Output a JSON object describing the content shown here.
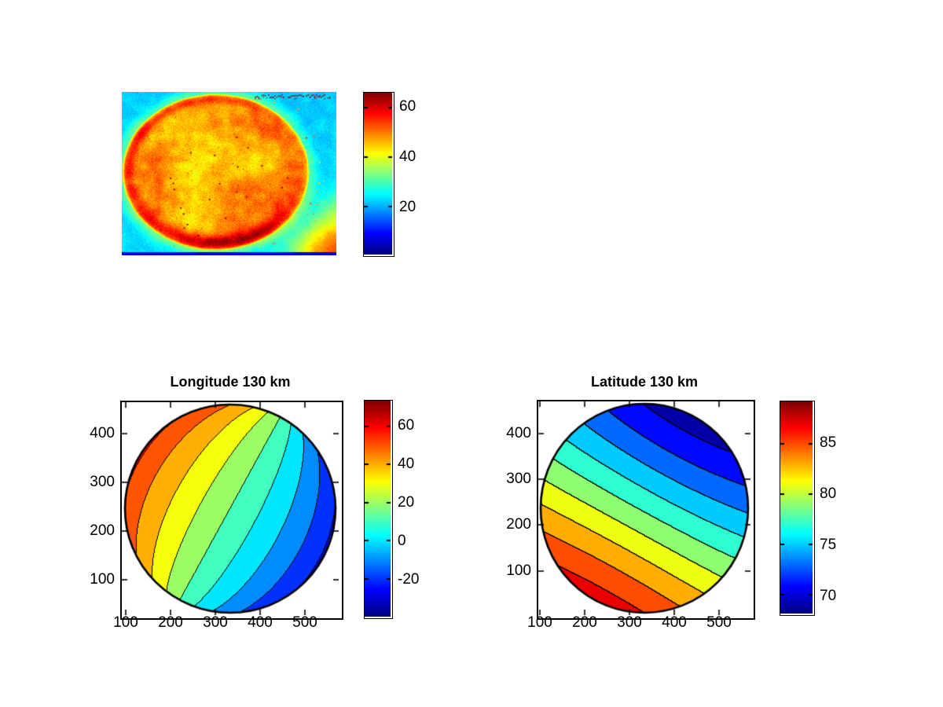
{
  "figure": {
    "kind": "matlab-like scientific figure",
    "background": "#ffffff",
    "colormap": "jet",
    "jet_endpoints": {
      "low": "#000080",
      "high": "#800000"
    }
  },
  "chart_data": [
    {
      "id": "planet-disk-image",
      "type": "heatmap",
      "title": "",
      "colormap": "jet",
      "caxis": [
        1,
        66
      ],
      "colorbar_ticks": [
        60,
        40,
        20
      ],
      "background_level": 22.5,
      "disk_level": 46.5,
      "halo_level": 31,
      "bottom_line_level": 8,
      "disk_center_frac": [
        0.436,
        0.488
      ],
      "disk_radius_frac": [
        0.436,
        0.478
      ],
      "stamp": "illegible dark-red pixel timestamp at top-right",
      "features": [
        "dark-red limb ring strongest on upper-left arc",
        "dark-red crescent at bottom of disk",
        "dark-red shading inside right limb",
        "red-orange blob entering bottom-right corner",
        "yellow-green halo around disk",
        "dark-blue horizontal line along bottom edge",
        "random bright and dark speckles (cosmic-ray hits)"
      ]
    },
    {
      "id": "longitude-contour",
      "type": "contour",
      "title": "Longitude 130 km",
      "x_ticks": [
        100,
        200,
        300,
        400,
        500
      ],
      "y_ticks": [
        100,
        200,
        300,
        400
      ],
      "contour_levels_min": -35,
      "contour_level_step": 10,
      "n_bands": 10,
      "caxis": [
        -39.6,
        73.5
      ],
      "colorbar_ticks": [
        60,
        40,
        20,
        0,
        -20
      ],
      "value_at_disk_center": 15,
      "value_model": {
        "kind": "azimuth-about-pole",
        "offset_deg": 15,
        "scale": -0.65
      },
      "legend_position": "right-colorbar",
      "grid": false
    },
    {
      "id": "latitude-contour",
      "type": "contour",
      "title": "Latitude 130 km",
      "x_ticks": [
        100,
        200,
        300,
        400,
        500
      ],
      "y_ticks": [
        100,
        200,
        300,
        400
      ],
      "contour_levels_min": 68,
      "contour_level_step": 2,
      "n_bands": 10,
      "caxis": [
        68.2,
        89.2
      ],
      "colorbar_ticks": [
        85,
        80,
        75,
        70
      ],
      "value_at_disk_center": 77.7,
      "value_model": {
        "kind": "angular-distance-from-pole",
        "offset_deg": 78.2,
        "scale": 10.2
      },
      "legend_position": "right-colorbar",
      "grid": false
    }
  ],
  "projection_model": {
    "description": "orthographic planetary disk, pole hidden just behind lower-left limb",
    "pole_screen_direction_deg": 241.5,
    "pole_tilt_from_view_deg": 93,
    "limb_compression": 0.87
  }
}
